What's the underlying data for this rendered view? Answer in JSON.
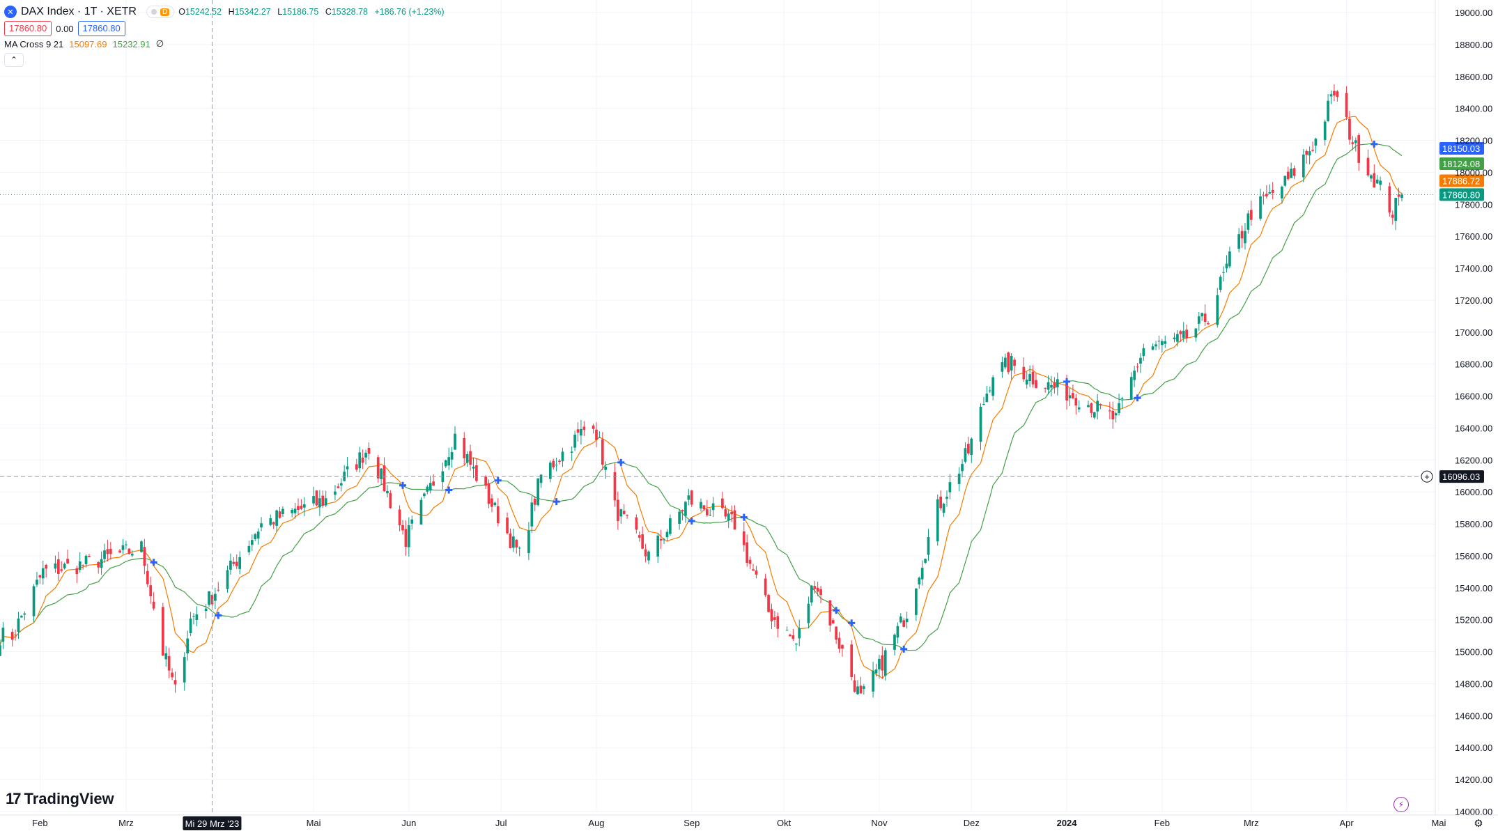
{
  "header": {
    "symbol_icon": "close-icon",
    "title": "DAX Index · 1T · XETR",
    "badge_letter": "D",
    "ohlc": {
      "o_label": "O",
      "o": "15242.52",
      "h_label": "H",
      "h": "15342.27",
      "l_label": "L",
      "l": "15186.75",
      "c_label": "C",
      "c": "15328.78",
      "change": "+186.76 (+1.23%)"
    },
    "bid": "17860.80",
    "spread": "0.00",
    "ask": "17860.80"
  },
  "indicator": {
    "name": "MA Cross 9 21",
    "fast": "15097.69",
    "slow": "15232.91",
    "null_symbol": "∅"
  },
  "brand": {
    "name": "TradingView"
  },
  "colors": {
    "up": "#089981",
    "down": "#f23645",
    "ma_fast": "#f57c00",
    "ma_slow": "#43a047",
    "cross": "#2962ff"
  },
  "chart_data": {
    "type": "candlestick",
    "y_ticks": [
      "19000.00",
      "18800.00",
      "18600.00",
      "18400.00",
      "18200.00",
      "18000.00",
      "17800.00",
      "17600.00",
      "17400.00",
      "17200.00",
      "17000.00",
      "16800.00",
      "16600.00",
      "16400.00",
      "16200.00",
      "16000.00",
      "15800.00",
      "15600.00",
      "15400.00",
      "15200.00",
      "15000.00",
      "14800.00",
      "14600.00",
      "14400.00",
      "14200.00",
      "14000.00"
    ],
    "x_ticks": [
      "Feb",
      "Mrz",
      "Mai",
      "Jun",
      "Jul",
      "Aug",
      "Sep",
      "Okt",
      "Nov",
      "Dez",
      "2024",
      "Feb",
      "Mrz",
      "Apr",
      "Mai"
    ],
    "crosshair_date": "Mi 29 Mrz '23",
    "crosshair_price": "16096.03",
    "price_labels": {
      "blue": "18150.03",
      "green": "18124.08",
      "orange": "17886.72",
      "last": "17860.80"
    },
    "ylim": [
      14000,
      19000
    ],
    "anchors": [
      {
        "date": "2023-01-23",
        "close": 15100
      },
      {
        "date": "2023-02-02",
        "close": 15500
      },
      {
        "date": "2023-02-16",
        "close": 15550
      },
      {
        "date": "2023-03-06",
        "close": 15650
      },
      {
        "date": "2023-03-13",
        "close": 15000
      },
      {
        "date": "2023-03-17",
        "close": 14750
      },
      {
        "date": "2023-03-22",
        "close": 15200
      },
      {
        "date": "2023-03-29",
        "close": 15350
      },
      {
        "date": "2023-04-14",
        "close": 15800
      },
      {
        "date": "2023-05-05",
        "close": 15950
      },
      {
        "date": "2023-05-19",
        "close": 16280
      },
      {
        "date": "2023-05-31",
        "close": 15700
      },
      {
        "date": "2023-06-16",
        "close": 16350
      },
      {
        "date": "2023-07-07",
        "close": 15600
      },
      {
        "date": "2023-07-14",
        "close": 16100
      },
      {
        "date": "2023-07-31",
        "close": 16450
      },
      {
        "date": "2023-08-07",
        "close": 15900
      },
      {
        "date": "2023-08-18",
        "close": 15600
      },
      {
        "date": "2023-08-31",
        "close": 15950
      },
      {
        "date": "2023-09-15",
        "close": 15800
      },
      {
        "date": "2023-09-26",
        "close": 15250
      },
      {
        "date": "2023-10-05",
        "close": 15050
      },
      {
        "date": "2023-10-11",
        "close": 15450
      },
      {
        "date": "2023-10-20",
        "close": 15000
      },
      {
        "date": "2023-10-26",
        "close": 14700
      },
      {
        "date": "2023-11-01",
        "close": 14900
      },
      {
        "date": "2023-11-10",
        "close": 15250
      },
      {
        "date": "2023-11-20",
        "close": 15900
      },
      {
        "date": "2023-11-30",
        "close": 16250
      },
      {
        "date": "2023-12-08",
        "close": 16750
      },
      {
        "date": "2023-12-14",
        "close": 16800
      },
      {
        "date": "2023-12-22",
        "close": 16700
      },
      {
        "date": "2024-01-04",
        "close": 16600
      },
      {
        "date": "2024-01-17",
        "close": 16450
      },
      {
        "date": "2024-01-26",
        "close": 16900
      },
      {
        "date": "2024-02-08",
        "close": 16950
      },
      {
        "date": "2024-02-16",
        "close": 17100
      },
      {
        "date": "2024-02-23",
        "close": 17450
      },
      {
        "date": "2024-03-01",
        "close": 17750
      },
      {
        "date": "2024-03-13",
        "close": 17950
      },
      {
        "date": "2024-03-22",
        "close": 18200
      },
      {
        "date": "2024-03-28",
        "close": 18500
      },
      {
        "date": "2024-04-04",
        "close": 18150
      },
      {
        "date": "2024-04-12",
        "close": 17900
      },
      {
        "date": "2024-04-16",
        "close": 17750
      },
      {
        "date": "2024-04-19",
        "close": 17860
      }
    ]
  }
}
